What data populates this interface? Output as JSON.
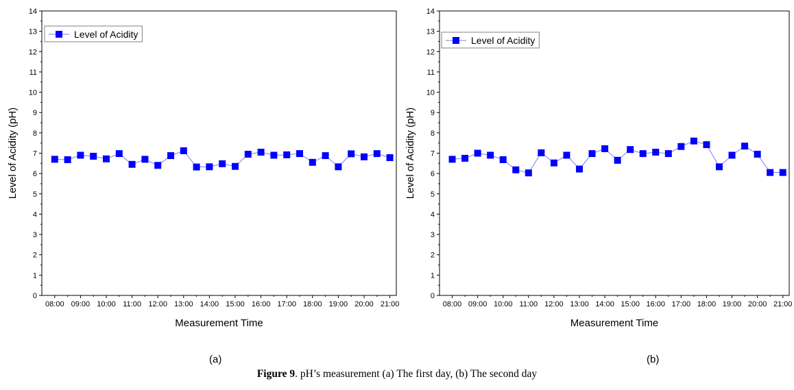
{
  "chart_data": [
    {
      "type": "line",
      "xlabel": "Measurement Time",
      "ylabel": "Level of Acidity (pH)",
      "ylim": [
        0,
        14
      ],
      "yticks": [
        "0",
        "1",
        "2",
        "3",
        "4",
        "5",
        "6",
        "7",
        "8",
        "9",
        "10",
        "11",
        "12",
        "13",
        "14"
      ],
      "xticks": [
        "08:00",
        "09:00",
        "10:00",
        "11:00",
        "12:00",
        "13:00",
        "14:00",
        "15:00",
        "16:00",
        "17:00",
        "18:00",
        "19:00",
        "20:00",
        "21:00"
      ],
      "legend_position": "top-left",
      "grid": false,
      "series": [
        {
          "name": "Level of Acidity",
          "color": "#0000ff",
          "x": [
            "08:00",
            "08:30",
            "09:00",
            "09:30",
            "10:00",
            "10:30",
            "11:00",
            "11:30",
            "12:00",
            "12:30",
            "13:00",
            "13:30",
            "14:00",
            "14:30",
            "15:00",
            "15:30",
            "16:00",
            "16:30",
            "17:00",
            "17:30",
            "18:00",
            "18:30",
            "19:00",
            "19:30",
            "20:00",
            "20:30",
            "21:00"
          ],
          "values": [
            6.7,
            6.68,
            6.9,
            6.85,
            6.72,
            6.98,
            6.45,
            6.7,
            6.4,
            6.88,
            7.12,
            6.32,
            6.33,
            6.48,
            6.35,
            6.95,
            7.05,
            6.9,
            6.92,
            6.98,
            6.55,
            6.88,
            6.33,
            6.97,
            6.82,
            6.98,
            6.78
          ]
        }
      ]
    },
    {
      "type": "line",
      "xlabel": "Measurement Time",
      "ylabel": "Level of Acidity (pH)",
      "ylim": [
        0,
        14
      ],
      "yticks": [
        "0",
        "1",
        "2",
        "3",
        "4",
        "5",
        "6",
        "7",
        "8",
        "9",
        "10",
        "11",
        "12",
        "13",
        "14"
      ],
      "xticks": [
        "08:00",
        "09:00",
        "10:00",
        "11:00",
        "12:00",
        "13:00",
        "14:00",
        "15:00",
        "16:00",
        "17:00",
        "18:00",
        "19:00",
        "20:00",
        "21:00"
      ],
      "legend_position": "top-left",
      "grid": false,
      "series": [
        {
          "name": "Level of Acidity",
          "color": "#0000ff",
          "x": [
            "08:00",
            "08:30",
            "09:00",
            "09:30",
            "10:00",
            "10:30",
            "11:00",
            "11:30",
            "12:00",
            "12:30",
            "13:00",
            "13:30",
            "14:00",
            "14:30",
            "15:00",
            "15:30",
            "16:00",
            "16:30",
            "17:00",
            "17:30",
            "18:00",
            "18:30",
            "19:00",
            "19:30",
            "20:00",
            "20:30",
            "21:00"
          ],
          "values": [
            6.7,
            6.75,
            7.0,
            6.9,
            6.68,
            6.18,
            6.03,
            7.02,
            6.52,
            6.9,
            6.22,
            6.98,
            7.22,
            6.65,
            7.18,
            6.98,
            7.05,
            6.98,
            7.33,
            7.6,
            7.42,
            6.33,
            6.9,
            7.35,
            6.95,
            6.05,
            6.05
          ]
        }
      ]
    }
  ],
  "labels": {
    "panel_a": "(a)",
    "panel_b": "(b)",
    "caption_bold": "Figure 9",
    "caption_rest": ". pH’s measurement (a) The first day, (b) The second day"
  }
}
